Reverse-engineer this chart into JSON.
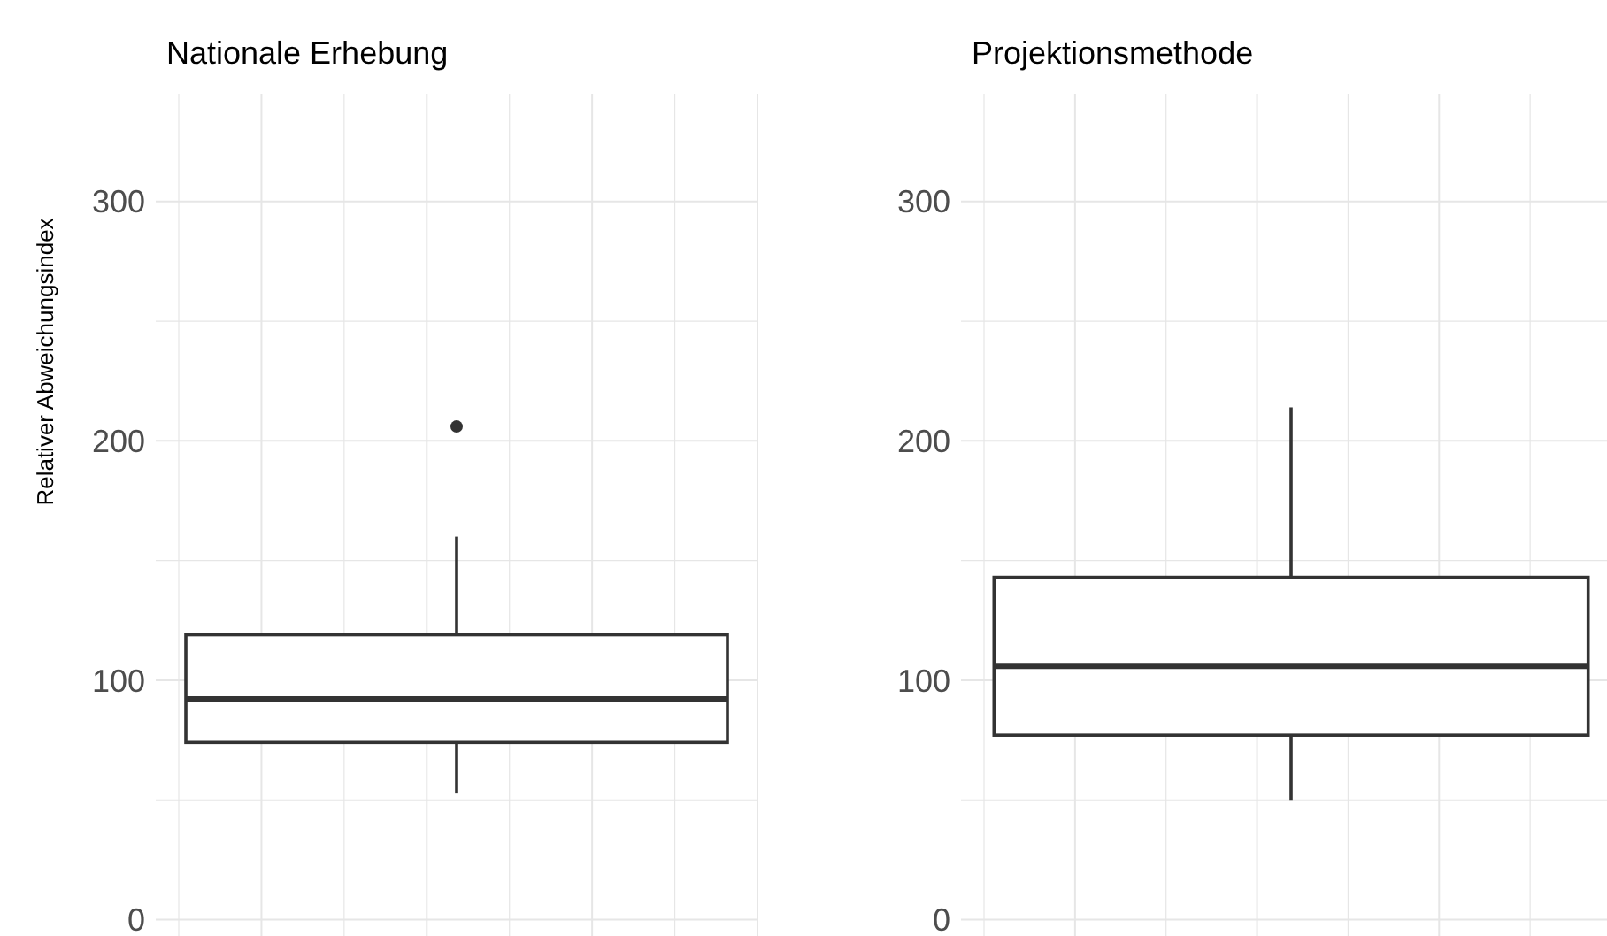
{
  "chart_data": [
    {
      "type": "box",
      "title": "Nationale Erhebung",
      "ylabel": "Relativer Abweichungsindex",
      "categories": [
        null
      ],
      "boxes": [
        {
          "low": 53,
          "q1": 74,
          "median": 92,
          "q3": 119,
          "high": 160,
          "outliers": [
            206
          ]
        }
      ],
      "ylim": [
        -12,
        345
      ],
      "yticks": [
        0,
        100,
        200,
        300
      ],
      "grid": true
    },
    {
      "type": "box",
      "title": "Projektionsmethode",
      "categories": [
        null
      ],
      "boxes": [
        {
          "low": 50,
          "q1": 77,
          "median": 106,
          "q3": 143,
          "high": 214
        }
      ],
      "ylim": [
        -12,
        345
      ],
      "yticks": [
        0,
        100,
        200,
        300
      ],
      "grid": true
    }
  ]
}
